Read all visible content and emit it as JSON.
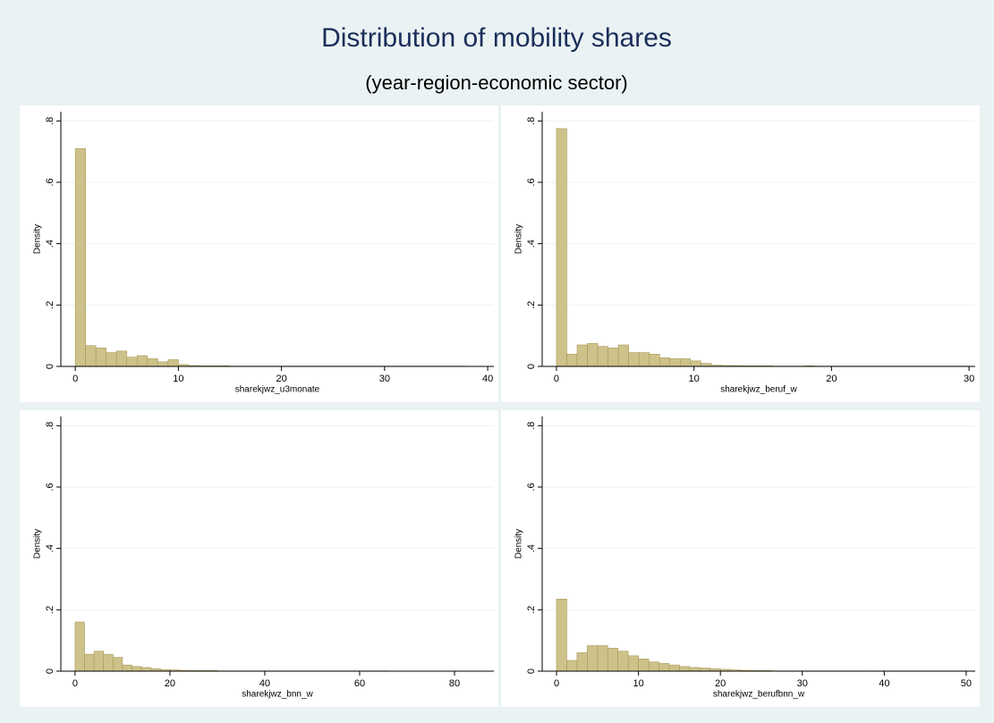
{
  "title": "Distribution of mobility shares",
  "subtitle": "(year-region-economic sector)",
  "chart_data": [
    {
      "type": "histogram",
      "xlabel": "sharekjwz_u3monate",
      "ylabel": "Density",
      "color": "#cdc28a",
      "edgecolor": "#a8995a",
      "grid": true,
      "xlim": [
        -1.4,
        40.6
      ],
      "ylim": [
        0,
        0.83
      ],
      "xticks": [
        0,
        10,
        20,
        30,
        40
      ],
      "yticks": [
        0,
        {
          "value": 0.2,
          "label": ".2"
        },
        {
          "value": 0.4,
          "label": ".4"
        },
        {
          "value": 0.6,
          "label": ".6"
        },
        {
          "value": 0.8,
          "label": ".8"
        }
      ],
      "bins": [
        0,
        1,
        2,
        3,
        4,
        5,
        6,
        7,
        8,
        9,
        10,
        11,
        12,
        13,
        14,
        15,
        16,
        17,
        18,
        19,
        20,
        21,
        22,
        23,
        24,
        25,
        26,
        27,
        28,
        29,
        30,
        31,
        32,
        33,
        34,
        35,
        36,
        37,
        38
      ],
      "values": [
        0.71,
        0.068,
        0.06,
        0.045,
        0.05,
        0.03,
        0.035,
        0.025,
        0.015,
        0.022,
        0.006,
        0.003,
        0.002,
        0.002,
        0.002,
        0.001,
        0.001,
        0.001,
        0.001,
        0.001,
        0.001,
        0.001,
        0.001,
        0.001,
        0.001,
        0.001,
        0.001,
        0.001,
        0.001,
        0.001,
        0.001,
        0.001,
        0.001,
        0.001,
        0.001,
        0.001,
        0.001,
        0.001
      ]
    },
    {
      "type": "histogram",
      "xlabel": "sharekjwz_beruf_w",
      "ylabel": "Density",
      "color": "#cdc28a",
      "edgecolor": "#a8995a",
      "grid": true,
      "xlim": [
        -1.04,
        30.45
      ],
      "ylim": [
        0,
        0.83
      ],
      "xticks": [
        0,
        10,
        20,
        30
      ],
      "yticks": [
        0,
        {
          "value": 0.2,
          "label": ".2"
        },
        {
          "value": 0.4,
          "label": ".4"
        },
        {
          "value": 0.6,
          "label": ".6"
        },
        {
          "value": 0.8,
          "label": ".8"
        }
      ],
      "bins": [
        0,
        0.75,
        1.5,
        2.25,
        3,
        3.75,
        4.5,
        5.25,
        6,
        6.75,
        7.5,
        8.25,
        9,
        9.75,
        10.5,
        11.25,
        12,
        12.75,
        13.5,
        14.25,
        15,
        15.75,
        16.5,
        17.25,
        18,
        18.75,
        19.5,
        20.25,
        21,
        21.75,
        22.5,
        23.25,
        24,
        24.75,
        25.5,
        26.25,
        27,
        27.75,
        28.5,
        29.25,
        30
      ],
      "values": [
        0.775,
        0.04,
        0.07,
        0.075,
        0.065,
        0.06,
        0.07,
        0.045,
        0.045,
        0.04,
        0.028,
        0.025,
        0.025,
        0.018,
        0.01,
        0.004,
        0.003,
        0.003,
        0.002,
        0.002,
        0.002,
        0.001,
        0.001,
        0.001,
        0.002,
        0.001,
        0.001,
        0.001,
        0.001,
        0.001,
        0.001,
        0.001,
        0.001,
        0.001,
        0.001,
        0.001,
        0.001,
        0.001,
        0.001,
        0.001
      ]
    },
    {
      "type": "histogram",
      "xlabel": "sharekjwz_bnn_w",
      "ylabel": "Density",
      "color": "#cdc28a",
      "edgecolor": "#a8995a",
      "grid": true,
      "xlim": [
        -3,
        88.3
      ],
      "ylim": [
        0,
        0.83
      ],
      "xticks": [
        0,
        20,
        40,
        60,
        80
      ],
      "yticks": [
        0,
        {
          "value": 0.2,
          "label": ".2"
        },
        {
          "value": 0.4,
          "label": ".4"
        },
        {
          "value": 0.6,
          "label": ".6"
        },
        {
          "value": 0.8,
          "label": ".8"
        }
      ],
      "bins": [
        0,
        2,
        4,
        6,
        8,
        10,
        12,
        14,
        16,
        18,
        20,
        22,
        24,
        26,
        28,
        30,
        32,
        34,
        36,
        38,
        40,
        42,
        44,
        46,
        48,
        50,
        52,
        54,
        56,
        58,
        60,
        62,
        64,
        66,
        68,
        70,
        72,
        74,
        76,
        78,
        80,
        82,
        84,
        86
      ],
      "values": [
        0.16,
        0.055,
        0.065,
        0.055,
        0.045,
        0.02,
        0.015,
        0.012,
        0.008,
        0.005,
        0.004,
        0.003,
        0.002,
        0.002,
        0.002,
        0.001,
        0.001,
        0.001,
        0.001,
        0.001,
        0.001,
        0.001,
        0.001,
        0.001,
        0.001,
        0.001,
        0.001,
        0.001,
        0.001,
        0.001,
        0.001,
        0.001,
        0.001,
        0,
        0,
        0,
        0,
        0,
        0,
        0,
        0,
        0,
        0
      ]
    },
    {
      "type": "histogram",
      "xlabel": "sharekjwz_berufbnn_w",
      "ylabel": "Density",
      "color": "#cdc28a",
      "edgecolor": "#a8995a",
      "grid": true,
      "xlim": [
        -1.75,
        51.1
      ],
      "ylim": [
        0,
        0.83
      ],
      "xticks": [
        0,
        10,
        20,
        30,
        40,
        50
      ],
      "yticks": [
        0,
        {
          "value": 0.2,
          "label": ".2"
        },
        {
          "value": 0.4,
          "label": ".4"
        },
        {
          "value": 0.6,
          "label": ".6"
        },
        {
          "value": 0.8,
          "label": ".8"
        }
      ],
      "bins": [
        0,
        1.25,
        2.5,
        3.75,
        5,
        6.25,
        7.5,
        8.75,
        10,
        11.25,
        12.5,
        13.75,
        15,
        16.25,
        17.5,
        18.75,
        20,
        21.25,
        22.5,
        23.75,
        25,
        26.25,
        27.5,
        28.75,
        30,
        31.25,
        32.5,
        33.75,
        35,
        36.25,
        37.5,
        38.75,
        40,
        41.25,
        42.5,
        43.75,
        45,
        46.25,
        47.5,
        48.75,
        50
      ],
      "values": [
        0.235,
        0.035,
        0.06,
        0.083,
        0.083,
        0.075,
        0.065,
        0.05,
        0.04,
        0.03,
        0.025,
        0.02,
        0.015,
        0.012,
        0.01,
        0.008,
        0.006,
        0.004,
        0.003,
        0.002,
        0.002,
        0.001,
        0.001,
        0.001,
        0.001,
        0.001,
        0.001,
        0.001,
        0.001,
        0.001,
        0.001,
        0.001,
        0.001,
        0.001,
        0.001,
        0.001,
        0.001,
        0.001,
        0.001,
        0.001
      ]
    }
  ]
}
